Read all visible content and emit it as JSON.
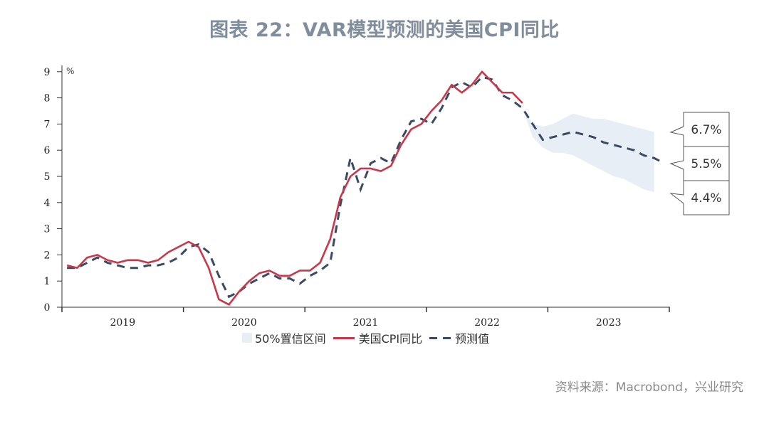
{
  "title": "图表 22：VAR模型预测的美国CPI同比",
  "source": "资料来源：Macrobond，兴业研究",
  "legend": {
    "band": "50%置信区间",
    "cpi": "美国CPI同比",
    "forecast": "预测值"
  },
  "y_unit": "%",
  "callouts": [
    "6.7%",
    "5.5%",
    "4.4%"
  ],
  "colors": {
    "cpi": "#c8374a",
    "forecast": "#3b4a63",
    "band": "#e8eef6",
    "title": "#7f8d9c"
  },
  "chart_data": {
    "type": "line",
    "title": "图表 22：VAR模型预测的美国CPI同比",
    "xlabel": "",
    "ylabel": "%",
    "ylim": [
      0,
      9
    ],
    "yticks": [
      0,
      1,
      2,
      3,
      4,
      5,
      6,
      7,
      8,
      9
    ],
    "xticks": [
      "2019",
      "2020",
      "2021",
      "2022",
      "2023"
    ],
    "grid": false,
    "legend_position": "bottom",
    "x_start": "2019-01",
    "x_freq": "monthly",
    "series": [
      {
        "name": "美国CPI同比",
        "style": "solid",
        "values": [
          1.6,
          1.5,
          1.9,
          2.0,
          1.8,
          1.7,
          1.8,
          1.8,
          1.7,
          1.8,
          2.1,
          2.3,
          2.5,
          2.3,
          1.5,
          0.3,
          0.1,
          0.6,
          1.0,
          1.3,
          1.4,
          1.2,
          1.2,
          1.4,
          1.4,
          1.7,
          2.6,
          4.2,
          5.0,
          5.3,
          5.3,
          5.2,
          5.4,
          6.2,
          6.8,
          7.0,
          7.5,
          7.9,
          8.5,
          8.2,
          8.5,
          9.0,
          8.6,
          8.2,
          8.2,
          7.8
        ]
      },
      {
        "name": "预测值",
        "style": "dashed",
        "values": [
          1.5,
          1.5,
          1.7,
          1.9,
          1.7,
          1.6,
          1.5,
          1.5,
          1.6,
          1.6,
          1.7,
          1.9,
          2.3,
          2.4,
          2.1,
          1.2,
          0.4,
          0.6,
          0.9,
          1.1,
          1.3,
          1.1,
          1.1,
          0.9,
          1.2,
          1.4,
          1.7,
          3.9,
          5.7,
          4.5,
          5.5,
          5.7,
          5.5,
          6.4,
          7.1,
          7.2,
          7.0,
          7.6,
          8.4,
          8.6,
          8.4,
          8.8,
          8.7,
          8.1,
          7.9,
          7.6,
          7.0,
          6.4,
          6.5,
          6.6,
          6.7,
          6.6,
          6.5,
          6.3,
          6.2,
          6.1,
          6.0,
          5.8,
          5.7,
          5.5
        ]
      },
      {
        "name": "50%置信区间",
        "style": "band",
        "x_start": "2022-10",
        "upper": [
          7.6,
          7.0,
          6.9,
          7.0,
          7.2,
          7.4,
          7.3,
          7.2,
          7.2,
          7.1,
          7.0,
          6.9,
          6.8,
          6.7
        ],
        "lower": [
          7.6,
          6.5,
          6.1,
          5.9,
          5.9,
          5.8,
          5.6,
          5.4,
          5.2,
          5.0,
          4.9,
          4.7,
          4.5,
          4.4
        ]
      }
    ],
    "annotations": [
      {
        "label": "6.7%",
        "value": 6.7,
        "target": "upper band end"
      },
      {
        "label": "5.5%",
        "value": 5.5,
        "target": "forecast end"
      },
      {
        "label": "4.4%",
        "value": 4.4,
        "target": "lower band end"
      }
    ]
  }
}
